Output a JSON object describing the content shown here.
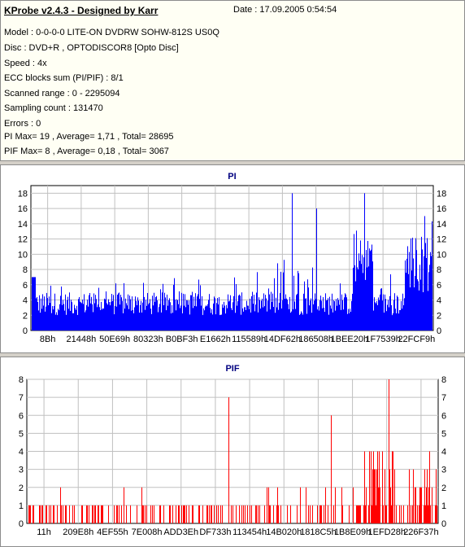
{
  "header": {
    "title": "KProbe v2.4.3 - Designed by Karr",
    "date": "Date : 17.09.2005 0:54:54"
  },
  "info_lines": [
    "Model : 0-0-0-0 LITE-ON DVDRW SOHW-812S  US0Q",
    "Disc : DVD+R , OPTODISCOR8 [Opto Disc]",
    "Speed : 4x",
    "ECC blocks sum (PI/PIF) : 8/1",
    "Scanned range : 0 - 2295094",
    "Sampling count : 131470",
    "Errors : 0",
    "PI Max= 19 , Average= 1,71 , Total= 28695",
    "PIF Max= 8 , Average= 0,18 , Total= 3067"
  ],
  "colors": {
    "pi": "#0000ff",
    "pif": "#ff0000",
    "pi_title": "#000080",
    "pif_title": "#000080",
    "grid": "#c0c0c0"
  },
  "chart_data": [
    {
      "type": "bar",
      "title": "PI",
      "ylim": [
        0,
        19
      ],
      "yticks": [
        0,
        2,
        4,
        6,
        8,
        10,
        12,
        14,
        16,
        18
      ],
      "xtick_labels": [
        "8Bh",
        "21448h",
        "50E69h",
        "80323h",
        "B0BF3h",
        "E1662h",
        "115589h",
        "14DF62h",
        "186508h",
        "1BEE20h",
        "1F7539h",
        "22FCF9h"
      ],
      "grid": true,
      "average": 1.71,
      "max": 19,
      "peaks": [
        {
          "pos": 0.83,
          "value": 18
        },
        {
          "pos": 0.65,
          "value": 18
        },
        {
          "pos": 0.71,
          "value": 16
        },
        {
          "pos": 0.98,
          "value": 15
        },
        {
          "pos": 0.0,
          "value": 7
        }
      ]
    },
    {
      "type": "bar",
      "title": "PIF",
      "ylim": [
        0,
        8
      ],
      "yticks": [
        0,
        1,
        2,
        3,
        4,
        5,
        6,
        7,
        8
      ],
      "xtick_labels": [
        "11h",
        "209E8h",
        "4EF55h",
        "7E008h",
        "ADD3Eh",
        "DF733h",
        "113454h",
        "14B020h",
        "1818C5h",
        "1B8E09h",
        "1EFD28h",
        "226F37h"
      ],
      "grid": true,
      "average": 0.18,
      "max": 8,
      "peaks": [
        {
          "pos": 0.88,
          "value": 8
        },
        {
          "pos": 0.49,
          "value": 7
        },
        {
          "pos": 0.74,
          "value": 6
        },
        {
          "pos": 0.98,
          "value": 4
        }
      ]
    }
  ]
}
